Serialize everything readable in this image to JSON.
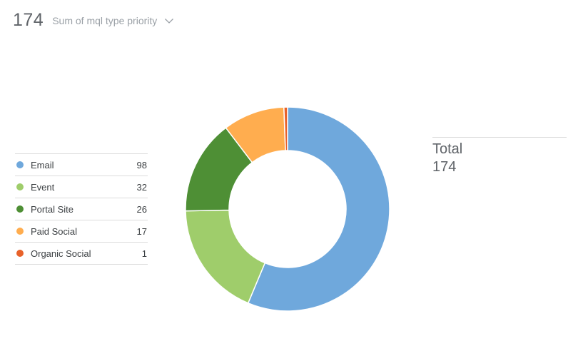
{
  "header": {
    "total": "174",
    "metric_label": "Sum of mql type priority",
    "dropdown_icon": "chevron-down-icon"
  },
  "summary": {
    "label": "Total",
    "value": "174"
  },
  "chart_data": {
    "type": "pie",
    "variant": "donut",
    "title": "",
    "categories": [
      "Email",
      "Event",
      "Portal Site",
      "Paid Social",
      "Organic Social"
    ],
    "values": [
      98,
      32,
      26,
      17,
      1
    ],
    "colors": [
      "#6fa8dc",
      "#9fcd6b",
      "#4e8f35",
      "#ffad4f",
      "#e8622a"
    ],
    "legend": "left",
    "total": 174
  }
}
